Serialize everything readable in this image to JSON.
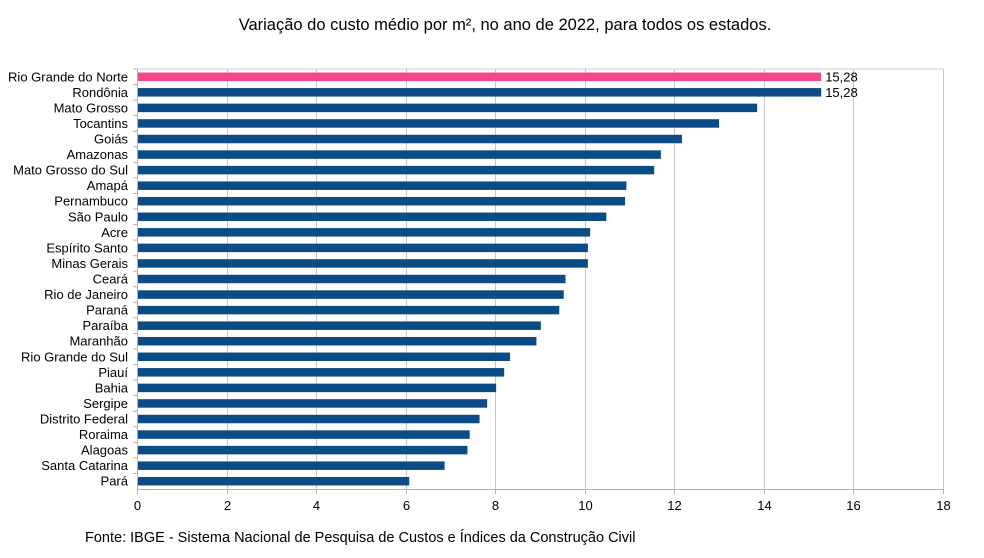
{
  "chart_data": {
    "type": "bar",
    "orientation": "horizontal",
    "title": "Variação do custo médio por m², no ano de 2022, para todos os estados.",
    "source": "Fonte: IBGE - Sistema Nacional de Pesquisa de Custos e Índices da Construção Civil",
    "xlim": [
      0,
      18
    ],
    "xticks": [
      "0",
      "2",
      "4",
      "6",
      "8",
      "10",
      "12",
      "14",
      "16",
      "18"
    ],
    "grid": true,
    "colors": {
      "default": "#0B4C86",
      "highlight": "#F2478F"
    },
    "categories": [
      "Rio Grande do Norte",
      "Rondônia",
      "Mato Grosso",
      "Tocantins",
      "Goiás",
      "Amazonas",
      "Mato Grosso do Sul",
      "Amapá",
      "Pernambuco",
      "São Paulo",
      "Acre",
      "Espírito Santo",
      "Minas Gerais",
      "Ceará",
      "Rio de Janeiro",
      "Paraná",
      "Paraíba",
      "Maranhão",
      "Rio Grande do Sul",
      "Piauí",
      "Bahia",
      "Sergipe",
      "Distrito Federal",
      "Roraima",
      "Alagoas",
      "Santa Catarina",
      "Pará"
    ],
    "values": [
      15.28,
      15.28,
      13.85,
      13.0,
      12.17,
      11.7,
      11.55,
      10.93,
      10.9,
      10.48,
      10.12,
      10.07,
      10.07,
      9.57,
      9.53,
      9.43,
      9.02,
      8.92,
      8.33,
      8.2,
      8.02,
      7.82,
      7.65,
      7.43,
      7.38,
      6.87,
      6.08
    ],
    "highlight": [
      true,
      false,
      false,
      false,
      false,
      false,
      false,
      false,
      false,
      false,
      false,
      false,
      false,
      false,
      false,
      false,
      false,
      false,
      false,
      false,
      false,
      false,
      false,
      false,
      false,
      false,
      false
    ],
    "data_labels": [
      "15,28",
      "15,28",
      "",
      "",
      "",
      "",
      "",
      "",
      "",
      "",
      "",
      "",
      "",
      "",
      "",
      "",
      "",
      "",
      "",
      "",
      "",
      "",
      "",
      "",
      "",
      "",
      ""
    ]
  }
}
